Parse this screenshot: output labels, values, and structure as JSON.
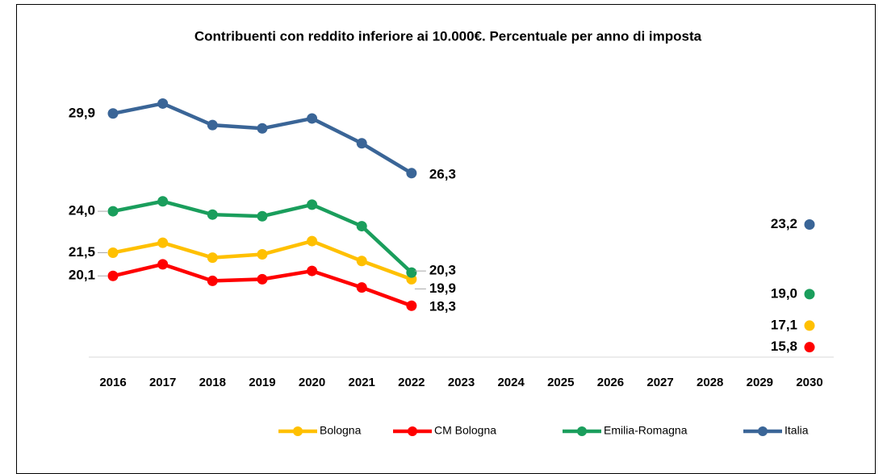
{
  "chart_data": {
    "type": "line",
    "title": "Contribuenti con reddito inferiore ai 10.000€. Percentuale per anno di imposta",
    "categories": [
      "2016",
      "2017",
      "2018",
      "2019",
      "2020",
      "2021",
      "2022",
      "2023",
      "2024",
      "2025",
      "2026",
      "2027",
      "2028",
      "2029",
      "2030"
    ],
    "ylim": [
      15.2,
      32
    ],
    "legend": "bottom",
    "series": [
      {
        "name": "Bologna",
        "color": "#FFC000",
        "values": [
          21.5,
          22.1,
          21.2,
          21.4,
          22.2,
          21.0,
          19.9,
          null,
          null,
          null,
          null,
          null,
          null,
          null,
          17.1
        ],
        "value_labels": [
          "21,5",
          null,
          null,
          null,
          null,
          null,
          "19,9",
          null,
          null,
          null,
          null,
          null,
          null,
          null,
          "17,1"
        ]
      },
      {
        "name": "CM Bologna",
        "color": "#FF0000",
        "values": [
          20.1,
          20.8,
          19.8,
          19.9,
          20.4,
          19.4,
          18.3,
          null,
          null,
          null,
          null,
          null,
          null,
          null,
          15.8
        ],
        "value_labels": [
          "20,1",
          null,
          null,
          null,
          null,
          null,
          "18,3",
          null,
          null,
          null,
          null,
          null,
          null,
          null,
          "15,8"
        ]
      },
      {
        "name": "Emilia-Romagna",
        "color": "#1A9E5C",
        "values": [
          24.0,
          24.6,
          23.8,
          23.7,
          24.4,
          23.1,
          20.3,
          null,
          null,
          null,
          null,
          null,
          null,
          null,
          19.0
        ],
        "value_labels": [
          "24,0",
          null,
          null,
          null,
          null,
          null,
          "20,3",
          null,
          null,
          null,
          null,
          null,
          null,
          null,
          "19,0"
        ]
      },
      {
        "name": "Italia",
        "color": "#3A6597",
        "values": [
          29.9,
          30.5,
          29.2,
          29.0,
          29.6,
          28.1,
          26.3,
          null,
          null,
          null,
          null,
          null,
          null,
          null,
          23.2
        ],
        "value_labels": [
          "29,9",
          null,
          null,
          null,
          null,
          null,
          "26,3",
          null,
          null,
          null,
          null,
          null,
          null,
          null,
          "23,2"
        ]
      }
    ]
  }
}
